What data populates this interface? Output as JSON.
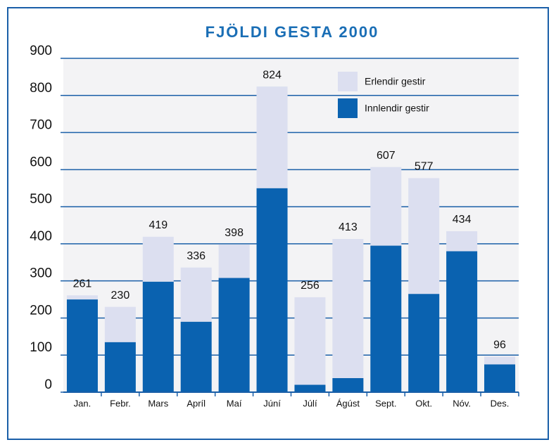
{
  "chart_data": {
    "type": "stacked-bar",
    "title": "FJÖLDI GESTA 2000",
    "categories": [
      "Jan.",
      "Febr.",
      "Mars",
      "Apríl",
      "Maí",
      "Júní",
      "Júlí",
      "Ágúst",
      "Sept.",
      "Okt.",
      "Nóv.",
      "Des."
    ],
    "series": [
      {
        "name": "Innlendir gestir",
        "color": "#0a62b0",
        "values": [
          250,
          135,
          298,
          190,
          308,
          550,
          20,
          38,
          395,
          265,
          380,
          75
        ]
      },
      {
        "name": "Erlendir gestir",
        "color": "#dcdff0",
        "values": [
          11,
          95,
          121,
          146,
          90,
          274,
          236,
          375,
          212,
          312,
          54,
          21
        ]
      }
    ],
    "totals": [
      261,
      230,
      419,
      336,
      398,
      824,
      256,
      413,
      607,
      577,
      434,
      96
    ],
    "ylim": [
      0,
      900
    ],
    "yticks": [
      0,
      100,
      200,
      300,
      400,
      500,
      600,
      700,
      800,
      900
    ],
    "grid": true
  }
}
